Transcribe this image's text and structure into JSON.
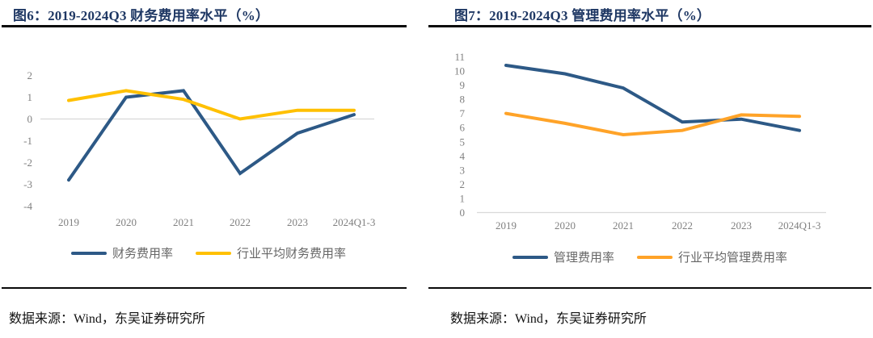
{
  "colors": {
    "title": "#1F3864",
    "axis_text": "#808080",
    "legend_text": "#666666",
    "gridline": "#D9D9D9",
    "divider": "#0A0A0A",
    "navy_series": "#2D5986",
    "gold_series": "#FFC000",
    "orange_series": "#FFA328"
  },
  "chart_data": [
    {
      "type": "line",
      "title": "图6：2019-2024Q3 财务费用率水平（%）",
      "source": "数据来源：Wind，东吴证券研究所",
      "categories": [
        "2019",
        "2020",
        "2021",
        "2022",
        "2023",
        "2024Q1-3"
      ],
      "series": [
        {
          "name": "财务费用率",
          "color": "#2D5986",
          "values": [
            -2.8,
            1.0,
            1.3,
            -2.5,
            -0.65,
            0.2
          ]
        },
        {
          "name": "行业平均财务费用率",
          "color": "#FFC000",
          "values": [
            0.85,
            1.3,
            0.9,
            0.0,
            0.4,
            0.4
          ]
        }
      ],
      "ylim": [
        -4,
        2
      ],
      "yticks": [
        2,
        1,
        0,
        -1,
        -2,
        -3,
        -4
      ],
      "grid": "single horizontal line at 0 only",
      "legend_position": "bottom"
    },
    {
      "type": "line",
      "title": "图7：2019-2024Q3 管理费用率水平（%）",
      "source": "数据来源：Wind，东吴证券研究所",
      "categories": [
        "2019",
        "2020",
        "2021",
        "2022",
        "2023",
        "2024Q1-3"
      ],
      "series": [
        {
          "name": "管理费用率",
          "color": "#2D5986",
          "values": [
            10.4,
            9.8,
            8.8,
            6.4,
            6.6,
            5.8
          ]
        },
        {
          "name": "行业平均管理费用率",
          "color": "#FFA328",
          "values": [
            7.0,
            6.3,
            5.5,
            5.8,
            6.9,
            6.8
          ]
        }
      ],
      "ylim": [
        0,
        11
      ],
      "yticks": [
        11,
        10,
        9,
        8,
        7,
        6,
        5,
        4,
        3,
        2,
        1,
        0
      ],
      "grid": "single horizontal baseline at 0 only",
      "legend_position": "bottom"
    }
  ]
}
